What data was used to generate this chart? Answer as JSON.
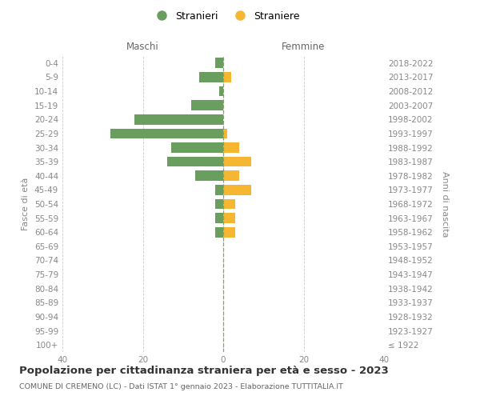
{
  "age_groups": [
    "100+",
    "95-99",
    "90-94",
    "85-89",
    "80-84",
    "75-79",
    "70-74",
    "65-69",
    "60-64",
    "55-59",
    "50-54",
    "45-49",
    "40-44",
    "35-39",
    "30-34",
    "25-29",
    "20-24",
    "15-19",
    "10-14",
    "5-9",
    "0-4"
  ],
  "birth_years": [
    "≤ 1922",
    "1923-1927",
    "1928-1932",
    "1933-1937",
    "1938-1942",
    "1943-1947",
    "1948-1952",
    "1953-1957",
    "1958-1962",
    "1963-1967",
    "1968-1972",
    "1973-1977",
    "1978-1982",
    "1983-1987",
    "1988-1992",
    "1993-1997",
    "1998-2002",
    "2003-2007",
    "2008-2012",
    "2013-2017",
    "2018-2022"
  ],
  "maschi": [
    0,
    0,
    0,
    0,
    0,
    0,
    0,
    0,
    2,
    2,
    2,
    2,
    7,
    14,
    13,
    28,
    22,
    8,
    1,
    6,
    2
  ],
  "femmine": [
    0,
    0,
    0,
    0,
    0,
    0,
    0,
    0,
    3,
    3,
    3,
    7,
    4,
    7,
    4,
    1,
    0,
    0,
    0,
    2,
    0
  ],
  "color_maschi": "#6a9e5e",
  "color_femmine": "#f5b731",
  "title": "Popolazione per cittadinanza straniera per età e sesso - 2023",
  "subtitle": "COMUNE DI CREMENO (LC) - Dati ISTAT 1° gennaio 2023 - Elaborazione TUTTITALIA.IT",
  "label_maschi_top": "Maschi",
  "label_femmine_top": "Femmine",
  "ylabel_left": "Fasce di età",
  "ylabel_right": "Anni di nascita",
  "legend_maschi": "Stranieri",
  "legend_femmine": "Straniere",
  "xlim": 40,
  "xticks": [
    -40,
    -20,
    0,
    20,
    40
  ],
  "xtick_labels": [
    "40",
    "20",
    "0",
    "20",
    "40"
  ],
  "background_color": "#ffffff",
  "grid_color": "#cccccc",
  "bar_height": 0.72,
  "title_fontsize": 9.5,
  "subtitle_fontsize": 6.8,
  "tick_fontsize": 7.5,
  "label_fontsize": 8.5,
  "ylabel_fontsize": 8
}
